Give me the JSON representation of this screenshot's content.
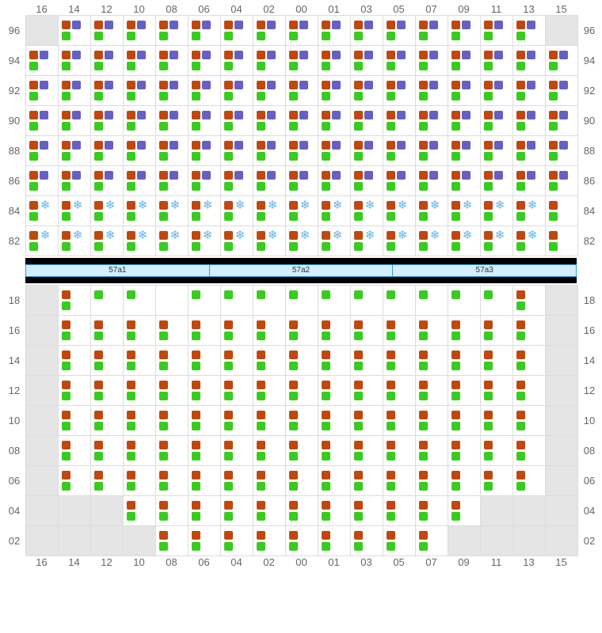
{
  "columns": [
    "16",
    "14",
    "12",
    "10",
    "08",
    "06",
    "04",
    "02",
    "00",
    "01",
    "03",
    "05",
    "07",
    "09",
    "11",
    "13",
    "15"
  ],
  "upper": {
    "rows": [
      "96",
      "94",
      "92",
      "90",
      "88",
      "86",
      "84",
      "82"
    ],
    "cells": {
      "96": {
        "pattern": "bp_g",
        "empty": [
          "16",
          "15"
        ]
      },
      "94": {
        "pattern": "bp_g",
        "empty": []
      },
      "92": {
        "pattern": "bp_g",
        "empty": []
      },
      "90": {
        "pattern": "bp_g",
        "empty": []
      },
      "88": {
        "pattern": "bp_g",
        "empty": []
      },
      "86": {
        "pattern": "bp_g",
        "empty": []
      },
      "84": {
        "pattern": "bs_g",
        "empty": [],
        "last_col_no_snow": true
      },
      "82": {
        "pattern": "bs_g",
        "empty": [],
        "last_col_no_snow": true
      }
    }
  },
  "rack_labels": [
    "57a1",
    "57a2",
    "57a3"
  ],
  "lower": {
    "rows": [
      "18",
      "16",
      "14",
      "12",
      "10",
      "08",
      "06",
      "04",
      "02"
    ],
    "cells": {
      "18": {
        "special18": true
      },
      "16": {
        "pattern": "b_g",
        "empty": [
          "16",
          "15"
        ]
      },
      "14": {
        "pattern": "b_g",
        "empty": [
          "16",
          "15"
        ]
      },
      "12": {
        "pattern": "b_g",
        "empty": [
          "16",
          "15"
        ]
      },
      "10": {
        "pattern": "b_g",
        "empty": [
          "16",
          "15"
        ]
      },
      "08": {
        "pattern": "b_g",
        "empty": [
          "16",
          "15"
        ]
      },
      "06": {
        "pattern": "b_g",
        "empty": [
          "16",
          "15"
        ]
      },
      "04": {
        "pattern": "b_g",
        "empty": [
          "16",
          "14",
          "12",
          "11",
          "13",
          "15"
        ]
      },
      "02": {
        "pattern": "b_g",
        "empty": [
          "16",
          "14",
          "12",
          "10",
          "09",
          "11",
          "13",
          "15"
        ]
      }
    }
  },
  "colors": {
    "brown": "#c0470e",
    "purple": "#6660c2",
    "green": "#38cc1e",
    "snow_text": "#5bb4f4",
    "border": "#dddddd",
    "empty_bg": "#e5e5e5",
    "rack_bg": "#d4edff",
    "rack_border": "#2da0d8"
  },
  "patterns": {
    "bp_g": {
      "top": [
        "brown",
        "purple"
      ],
      "bottom": [
        "green"
      ]
    },
    "bs_g": {
      "top": [
        "brown",
        "snow"
      ],
      "bottom": [
        "green"
      ]
    },
    "b_g": {
      "top": [
        "brown"
      ],
      "bottom": [
        "green"
      ]
    }
  },
  "row18_icons": {
    "green_only": [
      "12",
      "10",
      "06",
      "04",
      "02",
      "00",
      "01",
      "03",
      "05",
      "07",
      "09",
      "11"
    ],
    "brown_green": [
      "14",
      "13"
    ]
  }
}
